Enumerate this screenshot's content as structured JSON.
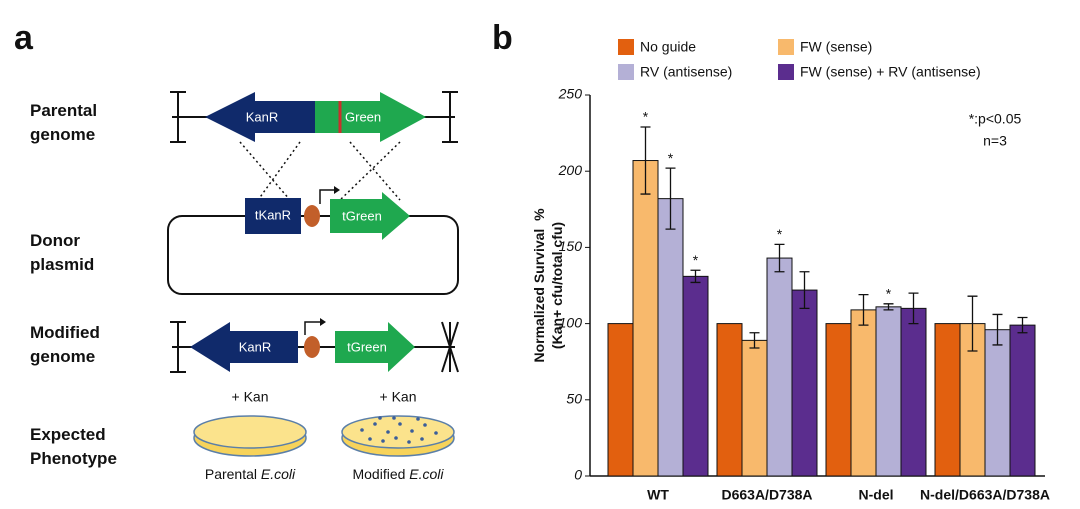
{
  "panel_a": {
    "label": "a",
    "row_labels": [
      [
        "Parental",
        "genome"
      ],
      [
        "Donor",
        "plasmid"
      ],
      [
        "Modified",
        "genome"
      ],
      [
        "Expected",
        "Phenotype"
      ]
    ],
    "parental_genes": [
      "KanR",
      "Green"
    ],
    "donor_genes": [
      "tKanR",
      "tGreen"
    ],
    "modified_genes": [
      "KanR",
      "tGreen"
    ],
    "plates": [
      {
        "condition": "+ Kan",
        "caption": "Parental ",
        "species": "E.coli"
      },
      {
        "condition": "+ Kan",
        "caption": "Modified ",
        "species": "E.coli"
      }
    ]
  },
  "chart_data": {
    "type": "bar",
    "panel_label": "b",
    "ylabel": [
      "Normalized Survival  %",
      "(Kan+ cfu/total cfu)"
    ],
    "annotation": [
      "*:p<0.05",
      "n=3"
    ],
    "categories": [
      "WT",
      "D663A/D738A",
      "N-del",
      "N-del/D663A/D738A"
    ],
    "series": [
      {
        "name": "No guide",
        "color": "#e2600f",
        "values": [
          100,
          100,
          100,
          100
        ]
      },
      {
        "name": "FW (sense)",
        "color": "#f8b96c",
        "values": [
          207,
          89,
          109,
          100
        ],
        "errors": [
          22,
          5,
          10,
          18
        ],
        "markers": [
          "*",
          null,
          null,
          null
        ]
      },
      {
        "name": "RV (antisense)",
        "color": "#b4b0d6",
        "values": [
          182,
          143,
          111,
          96
        ],
        "errors": [
          20,
          9,
          2,
          10
        ],
        "markers": [
          "*",
          "*",
          "*",
          null
        ]
      },
      {
        "name": "FW (sense) + RV (antisense)",
        "color": "#5b2d8e",
        "values": [
          131,
          122,
          110,
          99
        ],
        "errors": [
          4,
          12,
          10,
          5
        ],
        "markers": [
          "*",
          null,
          null,
          null
        ]
      }
    ],
    "ylim": [
      0,
      250
    ],
    "yticks": [
      0,
      50,
      100,
      150,
      200,
      250
    ],
    "grid": false
  }
}
